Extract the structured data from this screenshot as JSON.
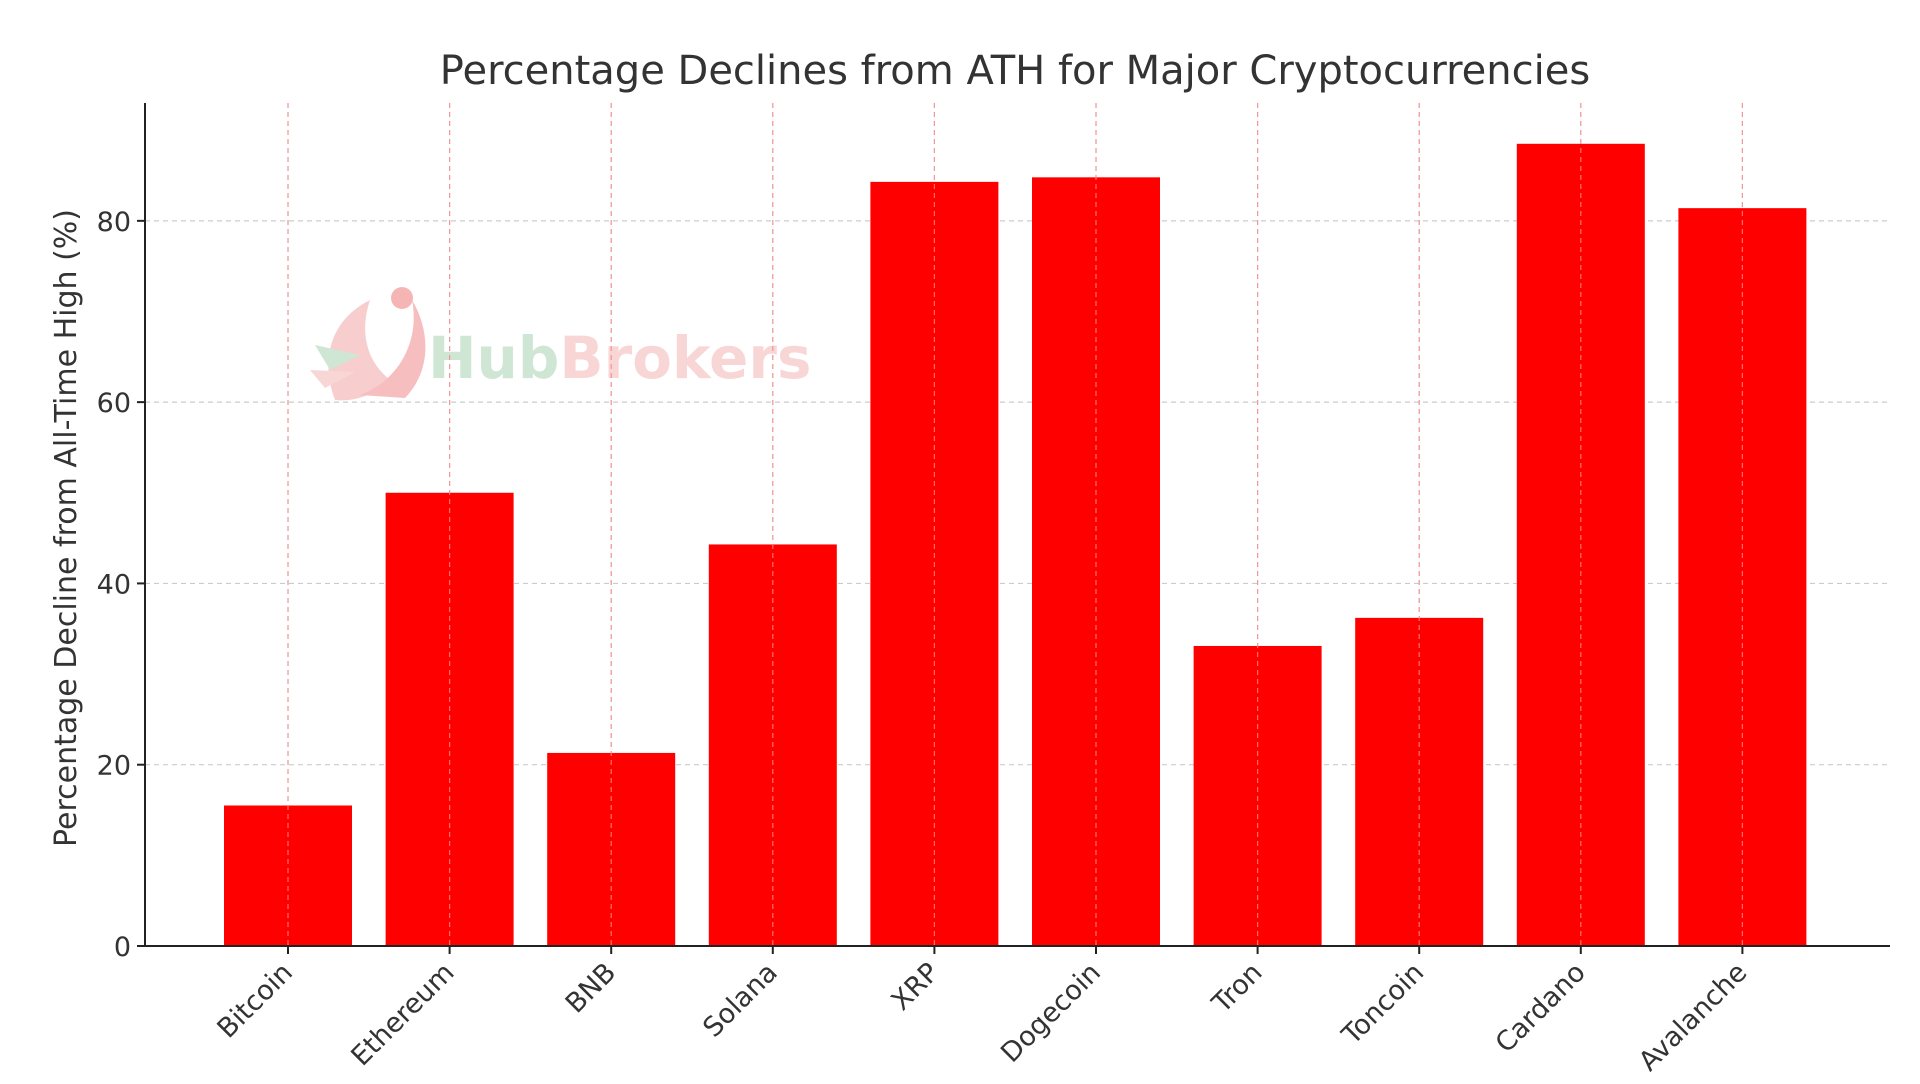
{
  "chart_data": {
    "type": "bar",
    "title": "Percentage Declines from ATH for Major Cryptocurrencies",
    "xlabel": "",
    "ylabel": "Percentage Decline from All-Time High (%)",
    "categories": [
      "Bitcoin",
      "Ethereum",
      "BNB",
      "Solana",
      "XRP",
      "Dogecoin",
      "Tron",
      "Toncoin",
      "Cardano",
      "Avalanche"
    ],
    "values": [
      15.5,
      50.0,
      21.3,
      44.3,
      84.3,
      84.8,
      33.1,
      36.2,
      88.5,
      81.4
    ],
    "ylim": [
      0,
      93
    ],
    "yticks": [
      0,
      20,
      40,
      60,
      80
    ],
    "ytick_labels": [
      "0",
      "20",
      "40",
      "60",
      "80"
    ],
    "grid": true,
    "bar_color": "#ff0000"
  },
  "watermark": {
    "text_part1": "Hub",
    "text_part2": "Brokers",
    "color1": "#a9d3b2",
    "color2": "#f5b6b6"
  }
}
